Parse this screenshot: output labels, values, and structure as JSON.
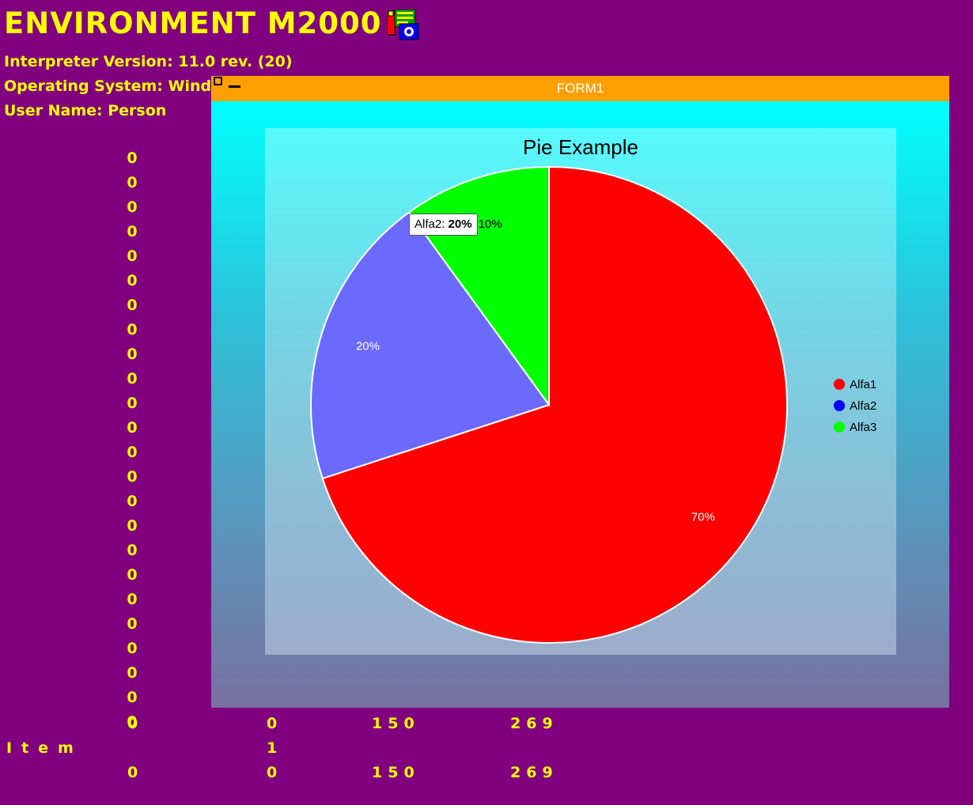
{
  "header": {
    "title": "ENVIRONMENT M2000",
    "interpreter": "Interpreter Version: 11.0 rev. (20)",
    "os": "Operating System: Wind",
    "user": "User Name: Person"
  },
  "zero_column": [
    "0",
    "0",
    "0",
    "0",
    "0",
    "0",
    "0",
    "0",
    "0",
    "0",
    "0",
    "0",
    "0",
    "0",
    "0",
    "0",
    "0",
    "0",
    "0",
    "0",
    "0",
    "0",
    "0",
    "0"
  ],
  "grid": {
    "row1": [
      "0",
      "0",
      "150",
      "269"
    ],
    "row2_label": "Item",
    "row2_value": "1",
    "row3": [
      "0",
      "0",
      "150",
      "269"
    ]
  },
  "form": {
    "title": "FORM1"
  },
  "tooltip": {
    "label": "Alfa2:",
    "value": "20%"
  },
  "chart_data": {
    "type": "pie",
    "title": "Pie Example",
    "labels": [
      "Alfa1",
      "Alfa2",
      "Alfa3"
    ],
    "values": [
      70,
      20,
      10
    ],
    "slice_labels": [
      "70%",
      "20%",
      "10%"
    ],
    "colors": [
      "#ff0000",
      "#6a6aff",
      "#00ff00"
    ],
    "legend_colors": [
      "#ff0000",
      "#0000ff",
      "#00ff00"
    ],
    "legend_position": "right",
    "start": "top, clockwise"
  }
}
